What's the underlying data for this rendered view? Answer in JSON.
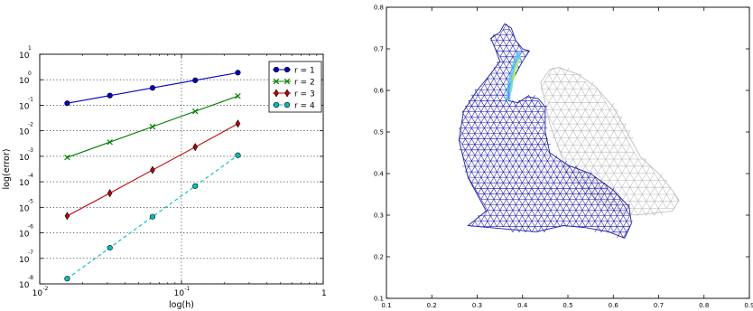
{
  "chart_data": [
    {
      "type": "line",
      "xlabel": "log(h)",
      "ylabel": "log(error)",
      "xscale": "log",
      "yscale": "log",
      "xlim": [
        0.01,
        1
      ],
      "ylim": [
        1e-08,
        10
      ],
      "x_ticks": [
        {
          "base": "10",
          "exp": "-2"
        },
        {
          "base": "10",
          "exp": "-1"
        },
        {
          "base": "1",
          "exp": ""
        }
      ],
      "y_ticks": [
        {
          "base": "10",
          "exp": "-8"
        },
        {
          "base": "10",
          "exp": "-7"
        },
        {
          "base": "10",
          "exp": "-6"
        },
        {
          "base": "10",
          "exp": "-5"
        },
        {
          "base": "10",
          "exp": "-4"
        },
        {
          "base": "10",
          "exp": "-3"
        },
        {
          "base": "10",
          "exp": "-2"
        },
        {
          "base": "10",
          "exp": "-1"
        },
        {
          "base": "10",
          "exp": "0"
        },
        {
          "base": "10",
          "exp": "1"
        }
      ],
      "grid": "dotted",
      "legend_position": "top-right",
      "x": [
        0.015625,
        0.03125,
        0.0625,
        0.125,
        0.25
      ],
      "series": [
        {
          "name": "r = 1",
          "color": "#0000bf",
          "marker": "circle",
          "line": "solid",
          "values": [
            0.12,
            0.24,
            0.48,
            0.95,
            1.9
          ]
        },
        {
          "name": "r = 2",
          "color": "#007f00",
          "marker": "x",
          "line": "solid",
          "values": [
            0.0009,
            0.0036,
            0.0145,
            0.058,
            0.23
          ]
        },
        {
          "name": "r = 3",
          "color": "#bf0000",
          "marker": "diamond",
          "line": "solid",
          "values": [
            4.6e-06,
            3.6e-05,
            0.00029,
            0.0023,
            0.019
          ]
        },
        {
          "name": "r = 4",
          "color": "#00bfbf",
          "marker": "circle",
          "line": "dashed",
          "values": [
            1.6e-08,
            2.6e-07,
            4.3e-06,
            6.8e-05,
            0.0011
          ]
        }
      ]
    },
    {
      "type": "mesh-plot",
      "xlim": [
        0.1,
        0.9
      ],
      "ylim": [
        0.1,
        0.8
      ],
      "x_ticks": [
        "0.1",
        "0.2",
        "0.3",
        "0.4",
        "0.5",
        "0.6",
        "0.7",
        "0.8",
        "0.9"
      ],
      "y_ticks": [
        "0.1",
        "0.2",
        "0.3",
        "0.4",
        "0.5",
        "0.6",
        "0.7",
        "0.8"
      ],
      "colors": {
        "deformed_mesh": "#1a1aa8",
        "reference_mesh": "#b8b8b8",
        "highlight": [
          "#4db8ff",
          "#66e0b0",
          "#d6f066"
        ]
      }
    }
  ]
}
